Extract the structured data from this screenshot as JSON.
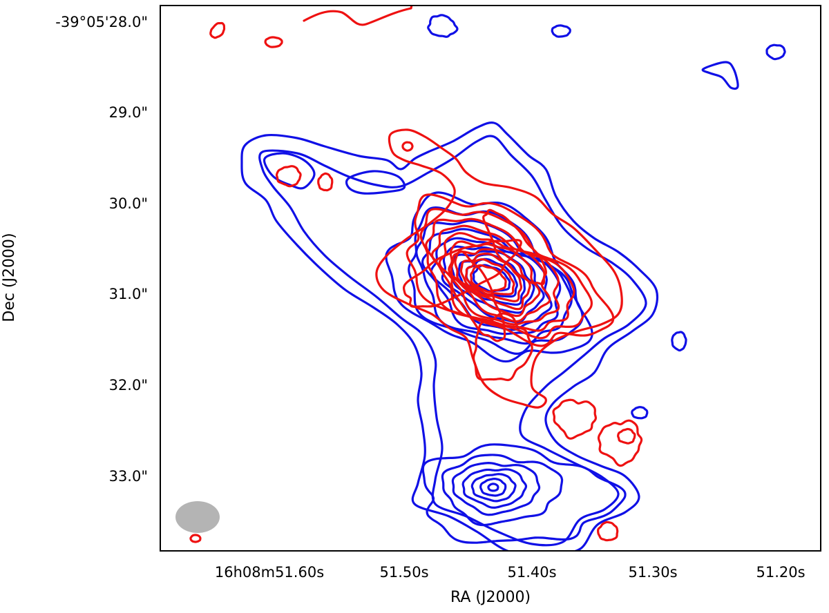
{
  "chart_data": {
    "type": "contour",
    "xlabel": "RA (J2000)",
    "ylabel": "Dec (J2000)",
    "x_ticks": [
      "16h08m51.60s",
      "51.50s",
      "51.40s",
      "51.30s",
      "51.20s"
    ],
    "y_ticks": [
      "-39°05'28.0\"",
      "29.0\"",
      "30.0\"",
      "31.0\"",
      "32.0\"",
      "33.0\""
    ],
    "colors": {
      "series_a": "#1010e6",
      "series_b": "#ee1111",
      "beam": "#b4b4b4"
    },
    "series": [
      {
        "color": "blue",
        "peaks": [
          {
            "ra": "51.42s",
            "dec": "-39°05'30.9\"",
            "levels": 14
          },
          {
            "ra": "51.43s",
            "dec": "-39°05'33.2\"",
            "levels": 9
          }
        ]
      },
      {
        "color": "red",
        "peaks": [
          {
            "ra": "51.42s",
            "dec": "-39°05'30.9\"",
            "levels": 16
          }
        ]
      }
    ],
    "beam": "filled gray ellipse, bottom-left"
  }
}
